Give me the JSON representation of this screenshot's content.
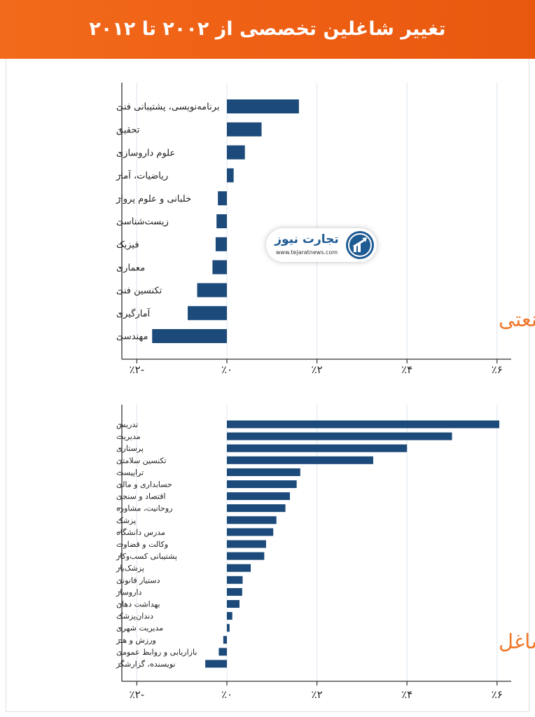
{
  "header": {
    "title": "تغییر شاغلین تخصصی از ۲۰۰۲ تا ۲۰۱۲"
  },
  "logo": {
    "name": "تجارت نیوز",
    "url": "www.tejaratnews.com",
    "icon": "arrow-chart-icon"
  },
  "colors": {
    "header_bg": "#ee5f14",
    "bar": "#1c4a7a",
    "section_label": "#f0782a",
    "grid": "#dde6ef",
    "logo_blue": "#1f5b93"
  },
  "chart_data": [
    {
      "type": "bar",
      "orientation": "horizontal",
      "title": "مشاغل علمی صنعتی",
      "categories": [
        "برنامه‌نویسی، پشتیبانی فنی",
        "تحقیق",
        "علوم داروسازی",
        "ریاضیات، آمار",
        "خلبانی و علوم پرواز",
        "زیست‌شناسی",
        "فیزیک",
        "معماری",
        "تکنسین فنی",
        "آمارگیری",
        "مهندسی"
      ],
      "values": [
        0.16,
        0.077,
        0.04,
        0.015,
        -0.02,
        -0.023,
        -0.025,
        -0.032,
        -0.066,
        -0.087,
        -0.166
      ],
      "xlim": [
        -0.2,
        0.62
      ],
      "xticks": [
        -0.2,
        0.0,
        0.2,
        0.4,
        0.6
      ],
      "xtick_labels": [
        "٪۲-",
        "٪۰",
        "٪۲",
        "٪۴",
        "٪۶"
      ],
      "grid": true
    },
    {
      "type": "bar",
      "orientation": "horizontal",
      "title": "دیگر مشاغل",
      "categories": [
        "تدریس",
        "مدیریت",
        "پرستاری",
        "تکنسین سلامتی",
        "تراپیست",
        "حسابداری و مالی",
        "اقتصاد و سنجی",
        "روحانیت، مشاوره",
        "پزشک",
        "مدرس دانشگاه",
        "وکالت و قضاوت",
        "پشتیبانی کسب‌وکار",
        "پزشک‌یار",
        "دستیار قانونی",
        "داروساز",
        "بهداشت دهان",
        "دندان‌پزشک",
        "مدیریت شهری",
        "ورزش و هنر",
        "بازاریابی و روابط عمومی",
        "نویسنده، گزارشگر"
      ],
      "values": [
        0.605,
        0.5,
        0.4,
        0.325,
        0.163,
        0.155,
        0.14,
        0.13,
        0.11,
        0.103,
        0.087,
        0.083,
        0.053,
        0.035,
        0.034,
        0.028,
        0.012,
        0.006,
        -0.008,
        -0.018,
        -0.048
      ],
      "xlim": [
        -0.2,
        0.62
      ],
      "xticks": [
        -0.2,
        0.0,
        0.2,
        0.4,
        0.6
      ],
      "xtick_labels": [
        "٪۲-",
        "٪۰",
        "٪۲",
        "٪۴",
        "٪۶"
      ],
      "grid": true
    }
  ]
}
